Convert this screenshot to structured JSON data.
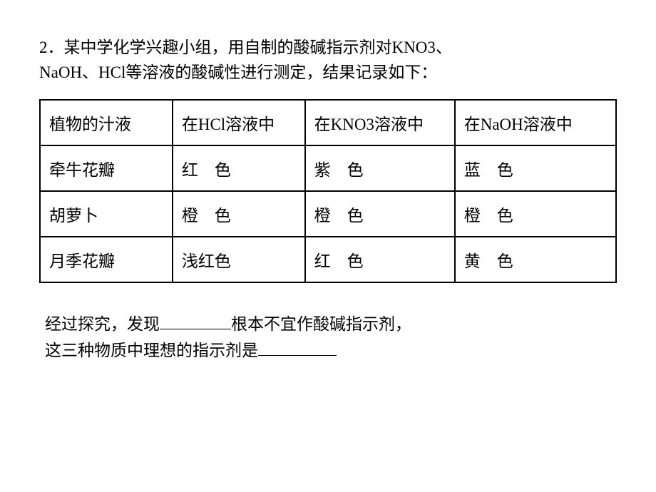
{
  "question": {
    "number": "2．",
    "text_line1": "某中学化学兴趣小组，用自制的酸碱指示剂对KNO3、",
    "text_line2": "NaOH、HCl等溶液的酸碱性进行测定，结果记录如下："
  },
  "table": {
    "headers": {
      "col1": "植物的汁液",
      "col2": "在HCl溶液中",
      "col3": "在KNO3溶液中",
      "col4": "在NaOH溶液中"
    },
    "rows": [
      {
        "plant": "牵牛花瓣",
        "hcl": "红　色",
        "kno3": "紫　色",
        "naoh": "蓝　色"
      },
      {
        "plant": "胡萝卜",
        "hcl": "橙　色",
        "kno3": "橙　色",
        "naoh": "橙　色"
      },
      {
        "plant": "月季花瓣",
        "hcl": "浅红色",
        "kno3": "红　色",
        "naoh": "黄　色"
      }
    ]
  },
  "conclusion": {
    "part1": "经过探究，发现",
    "part2": "根本不宜作酸碱指示剂，",
    "part3": "这三种物质中理想的指示剂是"
  },
  "styling": {
    "font_size_pt": 23,
    "text_color": "#000000",
    "background_color": "#ffffff",
    "border_color": "#000000",
    "border_width": 2,
    "blank_line_width_short": 100,
    "blank_line_width_long": 110
  }
}
